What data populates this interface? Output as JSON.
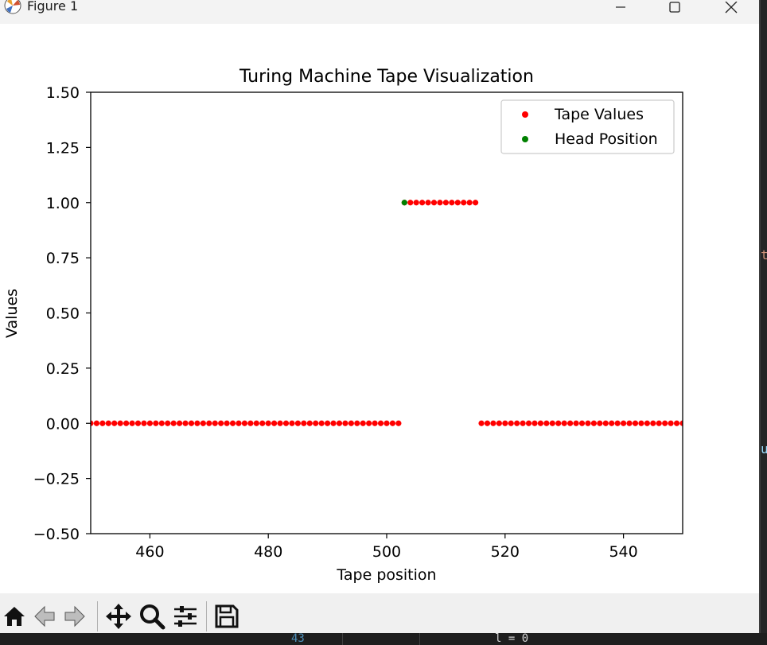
{
  "window": {
    "title": "Figure 1",
    "controls": [
      "minimize",
      "maximize",
      "close"
    ]
  },
  "toolbar": {
    "buttons": [
      {
        "name": "home-icon",
        "label": "Home"
      },
      {
        "name": "back-icon",
        "label": "Back"
      },
      {
        "name": "forward-icon",
        "label": "Forward"
      },
      {
        "name": "pan-icon",
        "label": "Pan"
      },
      {
        "name": "zoom-icon",
        "label": "Zoom"
      },
      {
        "name": "configure-subplots-icon",
        "label": "Configure subplots"
      },
      {
        "name": "save-icon",
        "label": "Save"
      }
    ]
  },
  "background_editor": {
    "right_fragment_1": "t",
    "right_fragment_2": "u",
    "bottom_fragment_1": "43",
    "bottom_fragment_2": "l = 0"
  },
  "chart_data": {
    "type": "scatter",
    "title": "Turing Machine Tape Visualization",
    "xlabel": "Tape position",
    "ylabel": "Values",
    "xlim": [
      450,
      550
    ],
    "ylim": [
      -0.5,
      1.5
    ],
    "xticks": [
      460,
      480,
      500,
      520,
      540
    ],
    "yticks": [
      "−0.50",
      "−0.25",
      "0.00",
      "0.25",
      "0.50",
      "0.75",
      "1.00",
      "1.25",
      "1.50"
    ],
    "ytick_values": [
      -0.5,
      -0.25,
      0,
      0.25,
      0.5,
      0.75,
      1,
      1.25,
      1.5
    ],
    "grid": false,
    "legend": {
      "placement": "top-right"
    },
    "series": [
      {
        "name": "Tape Values",
        "color": "#ff0000",
        "points": [
          [
            450,
            0
          ],
          [
            451,
            0
          ],
          [
            452,
            0
          ],
          [
            453,
            0
          ],
          [
            454,
            0
          ],
          [
            455,
            0
          ],
          [
            456,
            0
          ],
          [
            457,
            0
          ],
          [
            458,
            0
          ],
          [
            459,
            0
          ],
          [
            460,
            0
          ],
          [
            461,
            0
          ],
          [
            462,
            0
          ],
          [
            463,
            0
          ],
          [
            464,
            0
          ],
          [
            465,
            0
          ],
          [
            466,
            0
          ],
          [
            467,
            0
          ],
          [
            468,
            0
          ],
          [
            469,
            0
          ],
          [
            470,
            0
          ],
          [
            471,
            0
          ],
          [
            472,
            0
          ],
          [
            473,
            0
          ],
          [
            474,
            0
          ],
          [
            475,
            0
          ],
          [
            476,
            0
          ],
          [
            477,
            0
          ],
          [
            478,
            0
          ],
          [
            479,
            0
          ],
          [
            480,
            0
          ],
          [
            481,
            0
          ],
          [
            482,
            0
          ],
          [
            483,
            0
          ],
          [
            484,
            0
          ],
          [
            485,
            0
          ],
          [
            486,
            0
          ],
          [
            487,
            0
          ],
          [
            488,
            0
          ],
          [
            489,
            0
          ],
          [
            490,
            0
          ],
          [
            491,
            0
          ],
          [
            492,
            0
          ],
          [
            493,
            0
          ],
          [
            494,
            0
          ],
          [
            495,
            0
          ],
          [
            496,
            0
          ],
          [
            497,
            0
          ],
          [
            498,
            0
          ],
          [
            499,
            0
          ],
          [
            500,
            0
          ],
          [
            501,
            0
          ],
          [
            502,
            0
          ],
          [
            503,
            1
          ],
          [
            504,
            1
          ],
          [
            505,
            1
          ],
          [
            506,
            1
          ],
          [
            507,
            1
          ],
          [
            508,
            1
          ],
          [
            509,
            1
          ],
          [
            510,
            1
          ],
          [
            511,
            1
          ],
          [
            512,
            1
          ],
          [
            513,
            1
          ],
          [
            514,
            1
          ],
          [
            515,
            1
          ],
          [
            516,
            0
          ],
          [
            517,
            0
          ],
          [
            518,
            0
          ],
          [
            519,
            0
          ],
          [
            520,
            0
          ],
          [
            521,
            0
          ],
          [
            522,
            0
          ],
          [
            523,
            0
          ],
          [
            524,
            0
          ],
          [
            525,
            0
          ],
          [
            526,
            0
          ],
          [
            527,
            0
          ],
          [
            528,
            0
          ],
          [
            529,
            0
          ],
          [
            530,
            0
          ],
          [
            531,
            0
          ],
          [
            532,
            0
          ],
          [
            533,
            0
          ],
          [
            534,
            0
          ],
          [
            535,
            0
          ],
          [
            536,
            0
          ],
          [
            537,
            0
          ],
          [
            538,
            0
          ],
          [
            539,
            0
          ],
          [
            540,
            0
          ],
          [
            541,
            0
          ],
          [
            542,
            0
          ],
          [
            543,
            0
          ],
          [
            544,
            0
          ],
          [
            545,
            0
          ],
          [
            546,
            0
          ],
          [
            547,
            0
          ],
          [
            548,
            0
          ],
          [
            549,
            0
          ],
          [
            550,
            0
          ]
        ]
      },
      {
        "name": "Head Position",
        "color": "#008000",
        "points": [
          [
            503,
            1
          ]
        ]
      }
    ]
  }
}
